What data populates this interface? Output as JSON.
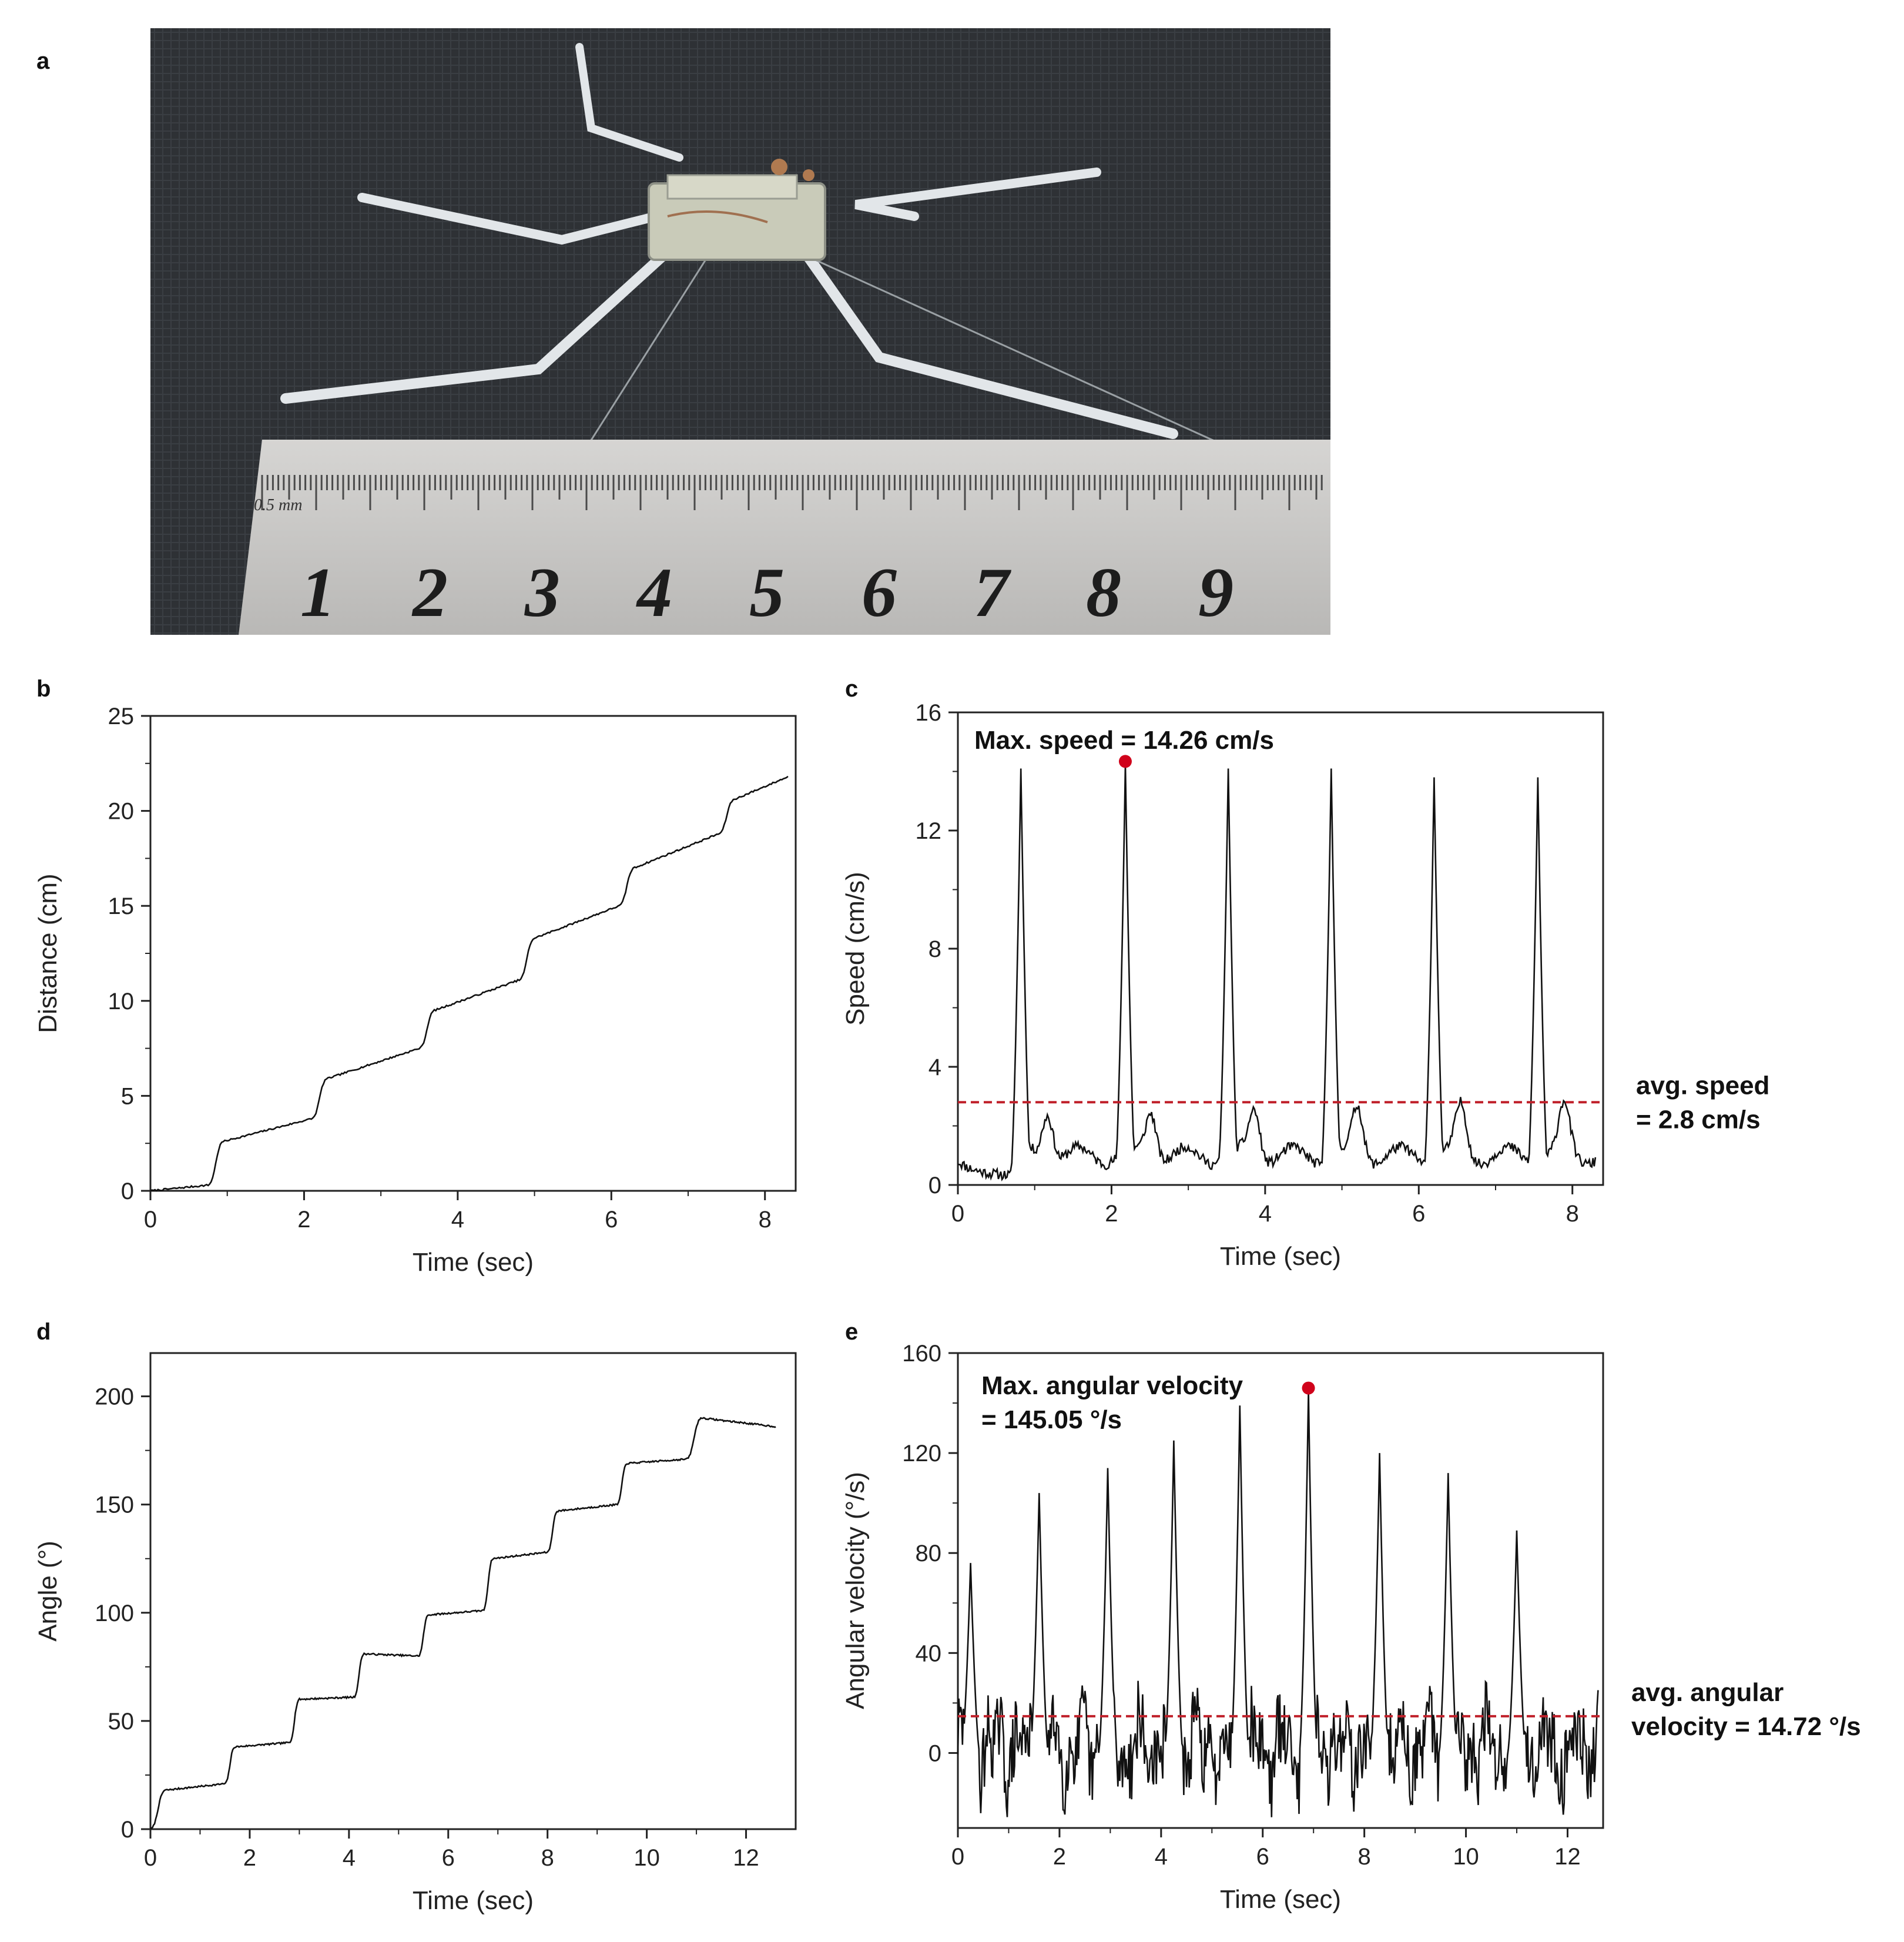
{
  "panels": {
    "a": "a",
    "b": "b",
    "c": "c",
    "d": "d",
    "e": "e"
  },
  "photo": {
    "ruler_unit": "0.5 mm",
    "ruler_numbers": [
      "1",
      "2",
      "3",
      "4",
      "5",
      "6",
      "7",
      "8",
      "9"
    ],
    "colors": {
      "fabric": "#2f3236",
      "ruler": "#c9c8c6",
      "legs": "#dfe3e6"
    }
  },
  "chart_data": [
    {
      "id": "b",
      "type": "line",
      "xlabel": "Time (sec)",
      "ylabel": "Distance (cm)",
      "xlim": [
        0,
        8.4
      ],
      "ylim": [
        0,
        25
      ],
      "xticks": [
        0,
        2,
        4,
        6,
        8
      ],
      "yticks": [
        0,
        5,
        10,
        15,
        20,
        25
      ],
      "series": [
        {
          "color": "#111111",
          "style": "staircase",
          "steps": [
            [
              0,
              0
            ],
            [
              0.75,
              0.3
            ],
            [
              0.95,
              2.6
            ],
            [
              2.1,
              3.8
            ],
            [
              2.3,
              5.9
            ],
            [
              3.5,
              7.5
            ],
            [
              3.7,
              9.5
            ],
            [
              4.8,
              11.1
            ],
            [
              5.0,
              13.3
            ],
            [
              6.1,
              15.0
            ],
            [
              6.3,
              17.0
            ],
            [
              7.4,
              18.8
            ],
            [
              7.6,
              20.6
            ],
            [
              8.3,
              21.8
            ]
          ]
        }
      ]
    },
    {
      "id": "c",
      "type": "line",
      "xlabel": "Time (sec)",
      "ylabel": "Speed (cm/s)",
      "xlim": [
        0,
        8.4
      ],
      "ylim": [
        0,
        16
      ],
      "xticks": [
        0,
        2,
        4,
        6,
        8
      ],
      "yticks": [
        0,
        4,
        8,
        12,
        16
      ],
      "peaks": [
        [
          0.82,
          14.1
        ],
        [
          2.18,
          14.26
        ],
        [
          3.52,
          14.1
        ],
        [
          4.86,
          14.1
        ],
        [
          6.2,
          13.8
        ],
        [
          7.55,
          13.8
        ]
      ],
      "max_point": {
        "x": 2.18,
        "y": 14.26,
        "color": "#d0021b"
      },
      "avg_line": {
        "y": 2.8,
        "color": "#c0202a"
      },
      "annotations": {
        "max": "Max. speed = 14.26 cm/s",
        "avg_line1": "avg. speed",
        "avg_line2": "= 2.8 cm/s"
      },
      "series": [
        {
          "color": "#111111"
        }
      ]
    },
    {
      "id": "d",
      "type": "line",
      "xlabel": "Time (sec)",
      "ylabel": "Angle (°)",
      "xlim": [
        0,
        13
      ],
      "ylim": [
        0,
        220
      ],
      "xticks": [
        0,
        2,
        4,
        6,
        8,
        10,
        12
      ],
      "yticks": [
        0,
        50,
        100,
        150,
        200
      ],
      "series": [
        {
          "color": "#111111",
          "style": "staircase",
          "steps": [
            [
              0,
              0
            ],
            [
              0.3,
              18
            ],
            [
              1.5,
              21
            ],
            [
              1.7,
              38
            ],
            [
              2.8,
              40
            ],
            [
              3.0,
              60
            ],
            [
              4.1,
              61
            ],
            [
              4.3,
              81
            ],
            [
              5.4,
              80
            ],
            [
              5.6,
              99
            ],
            [
              6.7,
              101
            ],
            [
              6.9,
              125
            ],
            [
              8.0,
              128
            ],
            [
              8.2,
              147
            ],
            [
              9.4,
              150
            ],
            [
              9.6,
              169
            ],
            [
              10.8,
              171
            ],
            [
              11.1,
              190
            ],
            [
              12.6,
              186
            ]
          ]
        }
      ]
    },
    {
      "id": "e",
      "type": "line",
      "xlabel": "Time (sec)",
      "ylabel": "Angular velocity (°/s)",
      "xlim": [
        0,
        12.7
      ],
      "ylim": [
        -30,
        160
      ],
      "xticks": [
        0,
        2,
        4,
        6,
        8,
        10,
        12
      ],
      "yticks": [
        0,
        40,
        80,
        120,
        160
      ],
      "peaks": [
        [
          0.25,
          76
        ],
        [
          1.6,
          104
        ],
        [
          2.95,
          114
        ],
        [
          4.25,
          125
        ],
        [
          5.55,
          139
        ],
        [
          6.9,
          145.05
        ],
        [
          8.3,
          120
        ],
        [
          9.65,
          112
        ],
        [
          11.0,
          89
        ]
      ],
      "max_point": {
        "x": 6.9,
        "y": 145.05,
        "color": "#d0021b"
      },
      "avg_line": {
        "y": 14.72,
        "color": "#c0202a"
      },
      "annotations": {
        "max_line1": "Max. angular velocity",
        "max_line2": "= 145.05 °/s",
        "avg_line1": "avg. angular",
        "avg_line2": "velocity = 14.72 °/s"
      },
      "series": [
        {
          "color": "#111111"
        }
      ]
    }
  ]
}
